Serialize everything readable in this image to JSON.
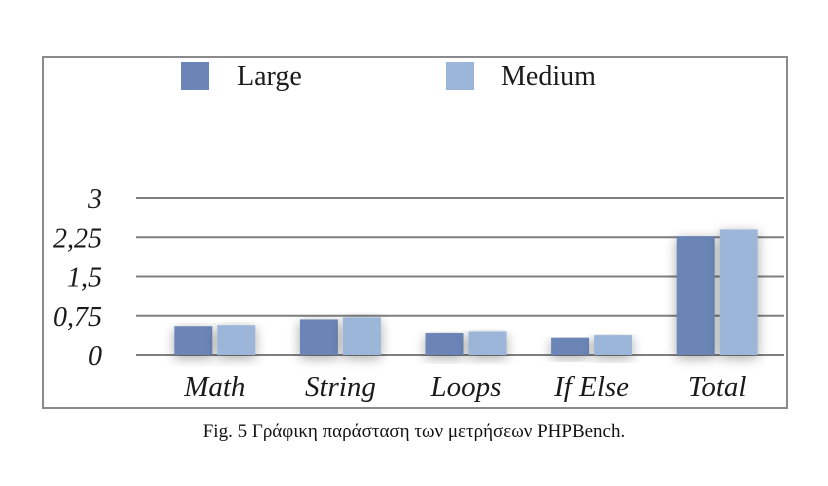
{
  "caption": "Fig. 5 Γράφικη παράσταση των μετρήσεων PHPBench.",
  "colors": {
    "large": "#6b85b6",
    "medium": "#9bb6d8",
    "grid": "#7f7f7f",
    "frame": "#8a8a8a"
  },
  "chart_data": {
    "type": "bar",
    "categories": [
      "Math",
      "String",
      "Loops",
      "If Else",
      "Total"
    ],
    "series": [
      {
        "name": "Large",
        "values": [
          0.55,
          0.68,
          0.42,
          0.33,
          2.27
        ]
      },
      {
        "name": "Medium",
        "values": [
          0.57,
          0.72,
          0.45,
          0.38,
          2.4
        ]
      }
    ],
    "y_ticks": [
      {
        "value": 0,
        "label": "0"
      },
      {
        "value": 0.75,
        "label": "0,75"
      },
      {
        "value": 1.5,
        "label": "1,5"
      },
      {
        "value": 2.25,
        "label": "2,25"
      },
      {
        "value": 3,
        "label": "3"
      }
    ],
    "ylim": [
      0,
      3
    ],
    "grid": true,
    "legend_position": "top"
  }
}
